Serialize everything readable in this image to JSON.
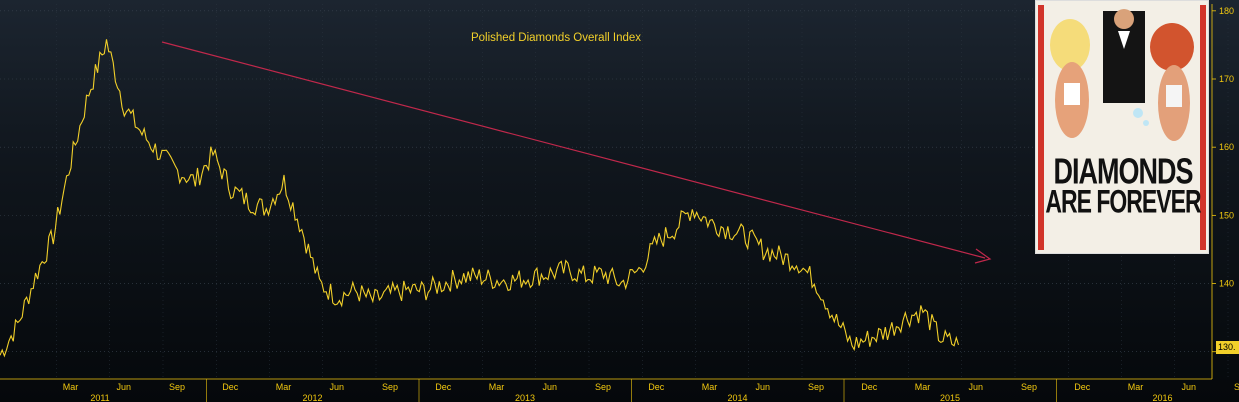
{
  "chart_data": {
    "type": "line",
    "title": "Polished Diamonds Overall Index",
    "x_tick_labels": [
      "Mar",
      "Jun",
      "Sep",
      "Dec",
      "Mar",
      "Jun",
      "Sep",
      "Dec",
      "Mar",
      "Jun",
      "Sep",
      "Dec",
      "Mar",
      "Jun",
      "Sep",
      "Dec",
      "Mar",
      "Jun",
      "Sep",
      "Dec",
      "Mar",
      "Jun",
      "Sep"
    ],
    "x_year_labels": [
      "2011",
      "2012",
      "2013",
      "2014",
      "2015",
      "2016"
    ],
    "y_tick_labels": [
      "130",
      "140",
      "150",
      "160",
      "170",
      "180"
    ],
    "ylim": [
      126,
      181
    ],
    "y_axis_side": "right",
    "last_value_label": "130.",
    "series": [
      {
        "color": "#f2d02a",
        "x": [
          "2011-01",
          "2011-02",
          "2011-03",
          "2011-04",
          "2011-05",
          "2011-06",
          "2011-07",
          "2011-08",
          "2011-09",
          "2011-10",
          "2011-11",
          "2011-12",
          "2012-01",
          "2012-02",
          "2012-03",
          "2012-04",
          "2012-05",
          "2012-06",
          "2012-07",
          "2012-08",
          "2012-09",
          "2012-10",
          "2012-11",
          "2012-12",
          "2013-01",
          "2013-02",
          "2013-03",
          "2013-04",
          "2013-05",
          "2013-06",
          "2013-07",
          "2013-08",
          "2013-09",
          "2013-10",
          "2013-11",
          "2013-12",
          "2014-01",
          "2014-02",
          "2014-03",
          "2014-04",
          "2014-05",
          "2014-06",
          "2014-07",
          "2014-08",
          "2014-09",
          "2014-10",
          "2014-11",
          "2014-12",
          "2015-01",
          "2015-02",
          "2015-03",
          "2015-04",
          "2015-05",
          "2015-06",
          "2015-07"
        ],
        "values": [
          129.5,
          134,
          141,
          147,
          158,
          168,
          175.5,
          166,
          162,
          159,
          156.5,
          155,
          159,
          154,
          152,
          151,
          155,
          148,
          140,
          138,
          139,
          137.5,
          138.5,
          139,
          139,
          140,
          141,
          141,
          140.5,
          140.5,
          141,
          141.5,
          142,
          141,
          141.5,
          140,
          142,
          146,
          148,
          151,
          149,
          148,
          147,
          145,
          144,
          143,
          140,
          135,
          131,
          132,
          133,
          135,
          136,
          132,
          131
        ]
      }
    ],
    "annotations": [
      "downward trend arrow"
    ]
  },
  "poster": {
    "line1": "DIAMONDS",
    "line2": "ARE FOREVER"
  }
}
